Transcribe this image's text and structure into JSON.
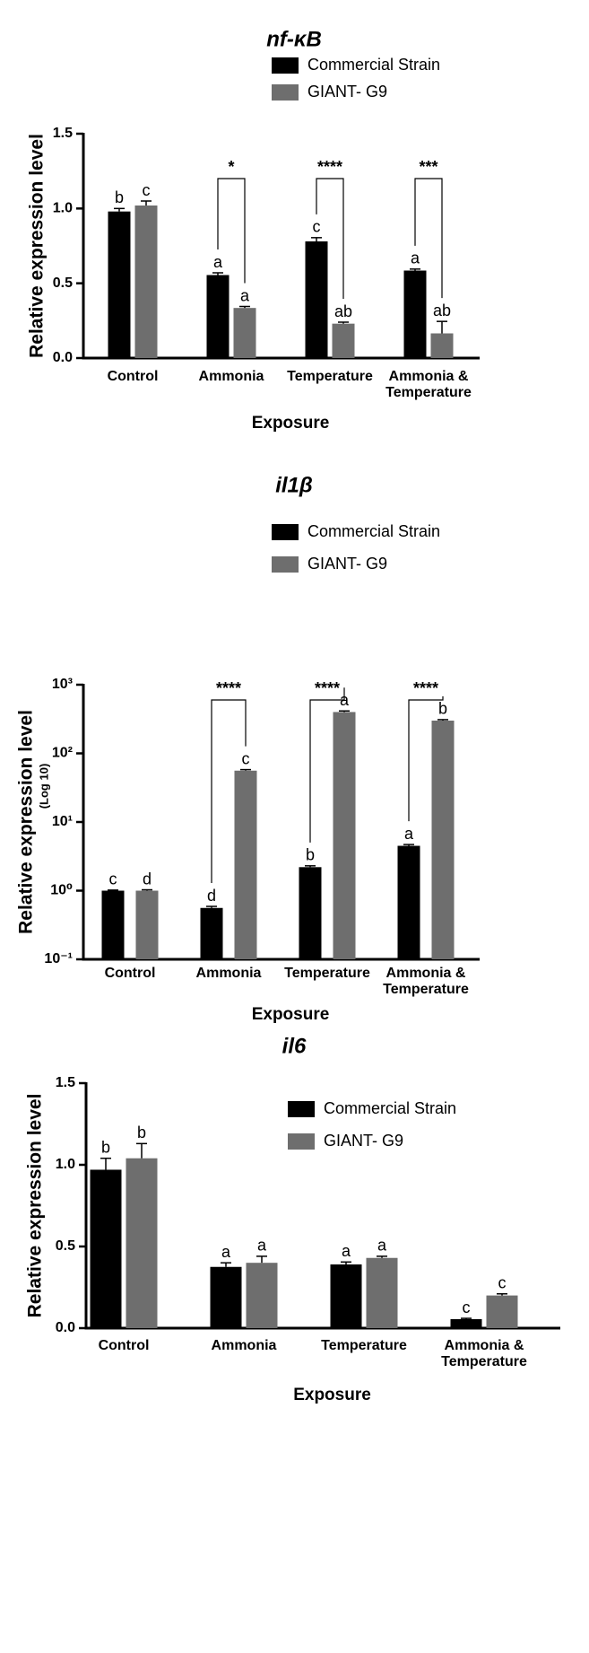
{
  "chart_data": [
    {
      "type": "bar",
      "title": "nf-κB",
      "x_label": "Exposure",
      "y_label": "Relative expression level",
      "categories": [
        "Control",
        "Ammonia",
        "Temperature",
        "Ammonia & Temperature"
      ],
      "series": [
        {
          "name": "Commercial Strain",
          "color": "#000000",
          "values": [
            0.98,
            0.555,
            0.78,
            0.585
          ],
          "errors": [
            0.02,
            0.015,
            0.025,
            0.01
          ],
          "letters": [
            "b",
            "a",
            "c",
            "a"
          ]
        },
        {
          "name": "GIANT- G9",
          "color": "#6e6e6e",
          "values": [
            1.02,
            0.335,
            0.23,
            0.165
          ],
          "errors": [
            0.03,
            0.01,
            0.01,
            0.08
          ],
          "letters": [
            "c",
            "a",
            "ab",
            "ab"
          ]
        }
      ],
      "significance": [
        null,
        "*",
        "****",
        "***"
      ],
      "ylim": [
        0,
        1.5
      ],
      "yticks": [
        {
          "value": 0,
          "label": "0.0"
        },
        0.5,
        {
          "value": 1,
          "label": "1.0"
        },
        1.5
      ],
      "log_scale": false,
      "grid": false,
      "legend": "top-right"
    },
    {
      "type": "bar",
      "title": "il1β",
      "x_label": "Exposure",
      "y_label": "Relative expression level",
      "y_sublabel": "(Log 10)",
      "categories": [
        "Control",
        "Ammonia",
        "Temperature",
        "Ammonia & Temperature"
      ],
      "series": [
        {
          "name": "Commercial Strain",
          "color": "#000000",
          "values": [
            1.0,
            0.56,
            2.2,
            4.5
          ],
          "errors": [
            0.02,
            0.03,
            0.1,
            0.2
          ],
          "letters": [
            "c",
            "d",
            "b",
            "a"
          ]
        },
        {
          "name": "GIANT- G9",
          "color": "#6e6e6e",
          "values": [
            1.0,
            56,
            400,
            300
          ],
          "errors": [
            0.03,
            2,
            15,
            10
          ],
          "letters": [
            "d",
            "c",
            "a",
            "b"
          ]
        }
      ],
      "significance": [
        null,
        "****",
        "****",
        "****"
      ],
      "ylim": [
        0.1,
        1000
      ],
      "yticks": [
        {
          "value": 0.1,
          "label": "10⁻¹"
        },
        {
          "value": 1,
          "label": "10⁰"
        },
        {
          "value": 10,
          "label": "10¹"
        },
        {
          "value": 100,
          "label": "10²"
        },
        {
          "value": 1000,
          "label": "10³"
        }
      ],
      "log_scale": true,
      "grid": false,
      "legend": "top-right"
    },
    {
      "type": "bar",
      "title": "il6",
      "x_label": "Exposure",
      "y_label": "Relative expression level",
      "categories": [
        "Control",
        "Ammonia",
        "Temperature",
        "Ammonia & Temperature"
      ],
      "series": [
        {
          "name": "Commercial Strain",
          "color": "#000000",
          "values": [
            0.97,
            0.375,
            0.39,
            0.055
          ],
          "errors": [
            0.07,
            0.025,
            0.015,
            0.005
          ],
          "letters": [
            "b",
            "a",
            "a",
            "c"
          ]
        },
        {
          "name": "GIANT- G9",
          "color": "#6e6e6e",
          "values": [
            1.04,
            0.4,
            0.43,
            0.2
          ],
          "errors": [
            0.09,
            0.04,
            0.01,
            0.01
          ],
          "letters": [
            "b",
            "a",
            "a",
            "c"
          ]
        }
      ],
      "ylim": [
        0,
        1.5
      ],
      "yticks": [
        {
          "value": 0,
          "label": "0.0"
        },
        0.5,
        {
          "value": 1,
          "label": "1.0"
        },
        1.5
      ],
      "log_scale": false,
      "grid": false,
      "legend": "top-right"
    }
  ]
}
